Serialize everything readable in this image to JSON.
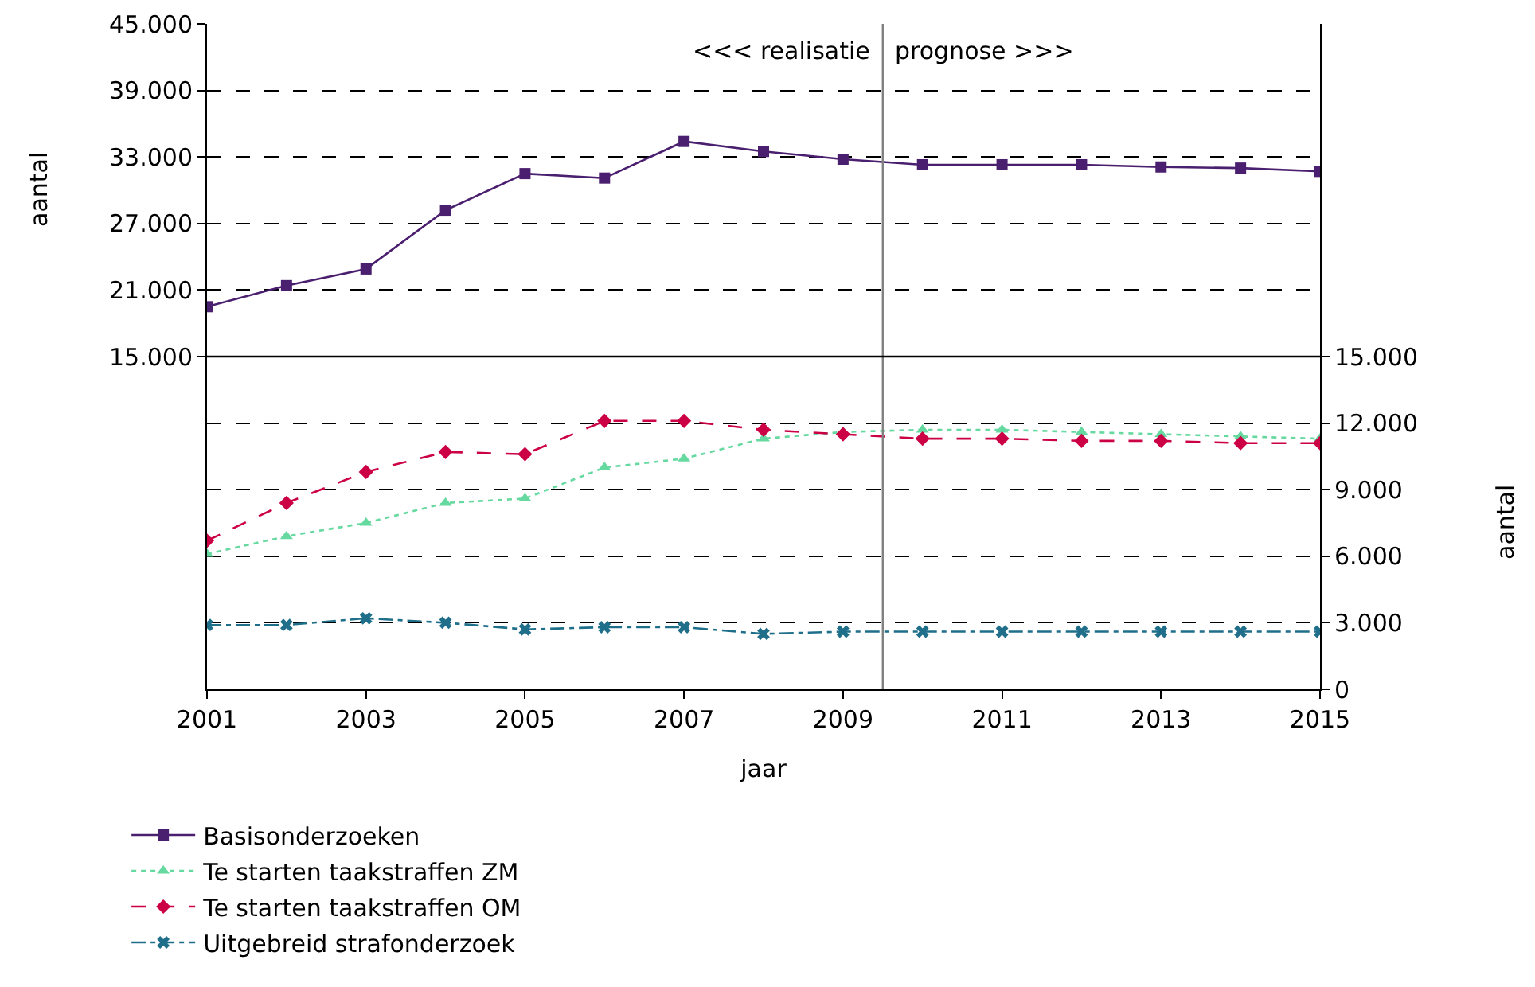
{
  "chart_data": {
    "type": "line",
    "xlabel": "jaar",
    "ylabel": "aantal",
    "y2label": "aantal",
    "x": [
      2001,
      2002,
      2003,
      2004,
      2005,
      2006,
      2007,
      2008,
      2009,
      2010,
      2011,
      2012,
      2013,
      2014,
      2015
    ],
    "xlim": [
      2001,
      2015
    ],
    "xticks": [
      2001,
      2003,
      2005,
      2007,
      2009,
      2011,
      2013,
      2015
    ],
    "ylim": [
      -15000,
      45000
    ],
    "yticks": [
      {
        "value": 15000,
        "label": "15.000"
      },
      {
        "value": 21000,
        "label": "21.000"
      },
      {
        "value": 27000,
        "label": "27.000"
      },
      {
        "value": 33000,
        "label": "33.000"
      },
      {
        "value": 39000,
        "label": "39.000"
      },
      {
        "value": 45000,
        "label": "45.000"
      }
    ],
    "y2lim": [
      0,
      30000
    ],
    "y2ticks": [
      {
        "value": 0,
        "label": "0"
      },
      {
        "value": 3000,
        "label": "3.000"
      },
      {
        "value": 6000,
        "label": "6.000"
      },
      {
        "value": 9000,
        "label": "9.000"
      },
      {
        "value": 12000,
        "label": "12.000"
      },
      {
        "value": 15000,
        "label": "15.000"
      }
    ],
    "grid": "y",
    "legend": "bottom left",
    "ref_lines": [
      {
        "axis": "x",
        "value": 2009.5,
        "color": "#808080"
      },
      {
        "axis": "y",
        "value": 15000,
        "color": "#000000"
      }
    ],
    "annotations": [
      "<<< realisatie",
      "prognose >>>"
    ],
    "series": [
      {
        "name": "Basisonderzoeken",
        "color": "#4b1f6f",
        "marker": "square",
        "line_style": "solid",
        "values": [
          19500,
          21400,
          22900,
          28200,
          31500,
          31100,
          34400,
          33500,
          32800,
          32300,
          32300,
          32300,
          32100,
          32000,
          31700
        ]
      },
      {
        "name": "Te starten taakstraffen ZM",
        "color": "#66d9a0",
        "marker": "triangle",
        "line_style": "dotted",
        "axis": "y2",
        "values": [
          6100,
          6900,
          7500,
          8400,
          8600,
          10000,
          10400,
          11300,
          11600,
          11700,
          11700,
          11600,
          11500,
          11400,
          11300
        ]
      },
      {
        "name": "Te starten taakstraffen OM",
        "color": "#cc0044",
        "marker": "diamond",
        "line_style": "dashed",
        "axis": "y2",
        "values": [
          6700,
          8400,
          9800,
          10700,
          10600,
          12100,
          12100,
          11700,
          11500,
          11300,
          11300,
          11200,
          11200,
          11100,
          11100
        ]
      },
      {
        "name": "Uitgebreid strafonderzoek",
        "color": "#1f6f8b",
        "marker": "cross",
        "line_style": "dashdot",
        "axis": "y2",
        "values": [
          2900,
          2900,
          3200,
          3000,
          2700,
          2800,
          2800,
          2500,
          2600,
          2600,
          2600,
          2600,
          2600,
          2600,
          2600
        ]
      }
    ]
  }
}
